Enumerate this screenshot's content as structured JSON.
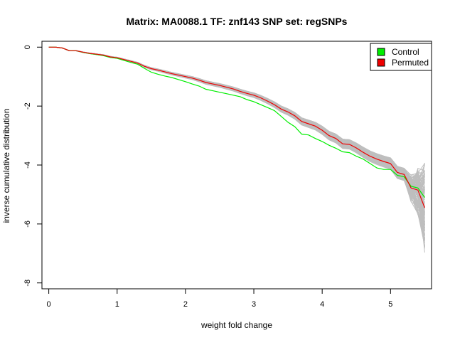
{
  "chart_data": {
    "type": "line",
    "title": "Matrix: MA0088.1 TF: znf143 SNP set: regSNPs",
    "xlabel": "weight fold change",
    "ylabel": "inverse cumulative distribution",
    "xlim": [
      -0.1,
      5.6
    ],
    "ylim": [
      -8.2,
      0.2
    ],
    "xticks": [
      0,
      1,
      2,
      3,
      4,
      5
    ],
    "yticks": [
      0,
      -2,
      -4,
      -6,
      -8
    ],
    "grid": false,
    "legend_position": "top-right",
    "x": [
      0,
      0.1,
      0.2,
      0.3,
      0.4,
      0.5,
      0.6,
      0.7,
      0.8,
      0.9,
      1.0,
      1.1,
      1.2,
      1.3,
      1.4,
      1.5,
      1.6,
      1.7,
      1.8,
      1.9,
      2.0,
      2.1,
      2.2,
      2.3,
      2.4,
      2.5,
      2.6,
      2.7,
      2.8,
      2.9,
      3.0,
      3.1,
      3.2,
      3.3,
      3.4,
      3.5,
      3.6,
      3.7,
      3.8,
      3.9,
      4.0,
      4.1,
      4.2,
      4.3,
      4.4,
      4.5,
      4.6,
      4.7,
      4.8,
      4.9,
      5.0,
      5.1,
      5.2,
      5.3,
      5.4,
      5.5
    ],
    "series": [
      {
        "name": "Control",
        "color": "#00ee00",
        "values": [
          0,
          0,
          -0.03,
          -0.12,
          -0.12,
          -0.18,
          -0.22,
          -0.25,
          -0.29,
          -0.35,
          -0.38,
          -0.45,
          -0.52,
          -0.58,
          -0.72,
          -0.85,
          -0.92,
          -0.98,
          -1.03,
          -1.1,
          -1.17,
          -1.25,
          -1.32,
          -1.43,
          -1.48,
          -1.53,
          -1.58,
          -1.63,
          -1.68,
          -1.78,
          -1.85,
          -1.95,
          -2.05,
          -2.15,
          -2.35,
          -2.55,
          -2.7,
          -2.95,
          -2.98,
          -3.1,
          -3.2,
          -3.33,
          -3.43,
          -3.55,
          -3.58,
          -3.7,
          -3.8,
          -3.95,
          -4.1,
          -4.15,
          -4.15,
          -4.35,
          -4.4,
          -4.72,
          -4.78,
          -5.1
        ]
      },
      {
        "name": "Permuted",
        "color": "#ee0000",
        "values": [
          0,
          0,
          -0.03,
          -0.12,
          -0.12,
          -0.17,
          -0.21,
          -0.24,
          -0.27,
          -0.33,
          -0.36,
          -0.42,
          -0.48,
          -0.54,
          -0.65,
          -0.73,
          -0.78,
          -0.84,
          -0.9,
          -0.95,
          -1.0,
          -1.05,
          -1.12,
          -1.2,
          -1.25,
          -1.3,
          -1.36,
          -1.42,
          -1.5,
          -1.57,
          -1.63,
          -1.72,
          -1.83,
          -1.95,
          -2.1,
          -2.2,
          -2.33,
          -2.52,
          -2.6,
          -2.68,
          -2.82,
          -3.0,
          -3.1,
          -3.28,
          -3.3,
          -3.42,
          -3.57,
          -3.7,
          -3.8,
          -3.88,
          -3.95,
          -4.25,
          -4.32,
          -4.78,
          -4.85,
          -5.45
        ]
      }
    ],
    "background_series": {
      "color": "#bebebe",
      "count": 100,
      "spread_factor": 0.05,
      "tail_spread": [
        0.35,
        0.8,
        1.4
      ]
    }
  }
}
